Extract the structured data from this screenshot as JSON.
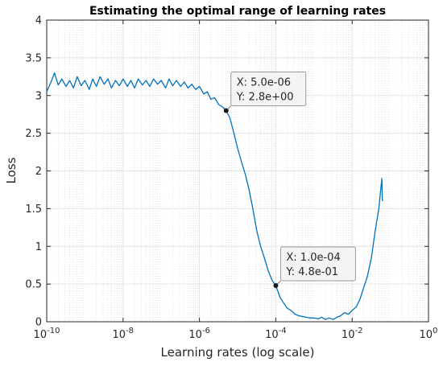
{
  "chart_data": {
    "type": "line",
    "title": "Estimating the optimal range of learning rates",
    "xlabel": "Learning rates (log scale)",
    "ylabel": "Loss",
    "x_scale": "log",
    "xlim": [
      1e-10,
      1
    ],
    "ylim": [
      0,
      4
    ],
    "x_ticks": [
      {
        "value": 1e-10,
        "base": "10",
        "exp": "-10"
      },
      {
        "value": 1e-08,
        "base": "10",
        "exp": "-8"
      },
      {
        "value": 1e-06,
        "base": "10",
        "exp": "-6"
      },
      {
        "value": 0.0001,
        "base": "10",
        "exp": "-4"
      },
      {
        "value": 0.01,
        "base": "10",
        "exp": "-2"
      },
      {
        "value": 1,
        "base": "10",
        "exp": "0"
      }
    ],
    "y_ticks": [
      {
        "value": 0,
        "label": "0"
      },
      {
        "value": 0.5,
        "label": "0.5"
      },
      {
        "value": 1,
        "label": "1"
      },
      {
        "value": 1.5,
        "label": "1.5"
      },
      {
        "value": 2,
        "label": "2"
      },
      {
        "value": 2.5,
        "label": "2.5"
      },
      {
        "value": 3,
        "label": "3"
      },
      {
        "value": 3.5,
        "label": "3.5"
      },
      {
        "value": 4,
        "label": "4"
      }
    ],
    "grid": true,
    "minor_grid": true,
    "line_color": "#0072bd",
    "series": [
      {
        "points": [
          [
            1e-10,
            3.05
          ],
          [
            1.3e-10,
            3.18
          ],
          [
            1.6e-10,
            3.3
          ],
          [
            2e-10,
            3.14
          ],
          [
            2.5e-10,
            3.22
          ],
          [
            3.2e-10,
            3.12
          ],
          [
            4e-10,
            3.2
          ],
          [
            5e-10,
            3.1
          ],
          [
            6.3e-10,
            3.25
          ],
          [
            8e-10,
            3.13
          ],
          [
            1e-09,
            3.2
          ],
          [
            1.3e-09,
            3.08
          ],
          [
            1.6e-09,
            3.22
          ],
          [
            2e-09,
            3.12
          ],
          [
            2.5e-09,
            3.25
          ],
          [
            3.2e-09,
            3.15
          ],
          [
            4e-09,
            3.22
          ],
          [
            5e-09,
            3.1
          ],
          [
            6.3e-09,
            3.2
          ],
          [
            8e-09,
            3.13
          ],
          [
            1e-08,
            3.22
          ],
          [
            1.3e-08,
            3.12
          ],
          [
            1.6e-08,
            3.2
          ],
          [
            2e-08,
            3.1
          ],
          [
            2.5e-08,
            3.22
          ],
          [
            3.2e-08,
            3.14
          ],
          [
            4e-08,
            3.2
          ],
          [
            5e-08,
            3.12
          ],
          [
            6.3e-08,
            3.22
          ],
          [
            8e-08,
            3.15
          ],
          [
            1e-07,
            3.2
          ],
          [
            1.3e-07,
            3.1
          ],
          [
            1.6e-07,
            3.22
          ],
          [
            2e-07,
            3.13
          ],
          [
            2.5e-07,
            3.2
          ],
          [
            3.2e-07,
            3.12
          ],
          [
            4e-07,
            3.18
          ],
          [
            5e-07,
            3.1
          ],
          [
            6.3e-07,
            3.15
          ],
          [
            8e-07,
            3.08
          ],
          [
            1e-06,
            3.12
          ],
          [
            1.3e-06,
            3.02
          ],
          [
            1.6e-06,
            3.05
          ],
          [
            2e-06,
            2.95
          ],
          [
            2.5e-06,
            2.97
          ],
          [
            3.2e-06,
            2.88
          ],
          [
            4e-06,
            2.85
          ],
          [
            5e-06,
            2.8
          ],
          [
            6.3e-06,
            2.7
          ],
          [
            8e-06,
            2.5
          ],
          [
            1e-05,
            2.3
          ],
          [
            1.3e-05,
            2.1
          ],
          [
            1.6e-05,
            1.95
          ],
          [
            2e-05,
            1.75
          ],
          [
            2.5e-05,
            1.5
          ],
          [
            3.2e-05,
            1.2
          ],
          [
            4e-05,
            1.0
          ],
          [
            5e-05,
            0.85
          ],
          [
            6.3e-05,
            0.68
          ],
          [
            8e-05,
            0.55
          ],
          [
            0.0001,
            0.48
          ],
          [
            0.00013,
            0.32
          ],
          [
            0.00016,
            0.25
          ],
          [
            0.0002,
            0.18
          ],
          [
            0.00025,
            0.15
          ],
          [
            0.00032,
            0.1
          ],
          [
            0.0004,
            0.08
          ],
          [
            0.0005,
            0.07
          ],
          [
            0.00063,
            0.06
          ],
          [
            0.0008,
            0.05
          ],
          [
            0.001,
            0.05
          ],
          [
            0.0013,
            0.04
          ],
          [
            0.0016,
            0.06
          ],
          [
            0.002,
            0.03
          ],
          [
            0.0025,
            0.05
          ],
          [
            0.0032,
            0.03
          ],
          [
            0.004,
            0.06
          ],
          [
            0.005,
            0.08
          ],
          [
            0.0063,
            0.12
          ],
          [
            0.008,
            0.1
          ],
          [
            0.01,
            0.15
          ],
          [
            0.013,
            0.2
          ],
          [
            0.016,
            0.3
          ],
          [
            0.02,
            0.45
          ],
          [
            0.025,
            0.6
          ],
          [
            0.032,
            0.85
          ],
          [
            0.04,
            1.2
          ],
          [
            0.05,
            1.5
          ],
          [
            0.056,
            1.75
          ],
          [
            0.06,
            1.9
          ],
          [
            0.062,
            1.6
          ]
        ]
      }
    ],
    "annotations": [
      {
        "x": 5e-06,
        "y": 2.8,
        "line1": "X: 5.0e-06",
        "line2": "Y: 2.8e+00"
      },
      {
        "x": 0.0001,
        "y": 0.48,
        "line1": "X: 1.0e-04",
        "line2": "Y: 4.8e-01"
      }
    ]
  }
}
